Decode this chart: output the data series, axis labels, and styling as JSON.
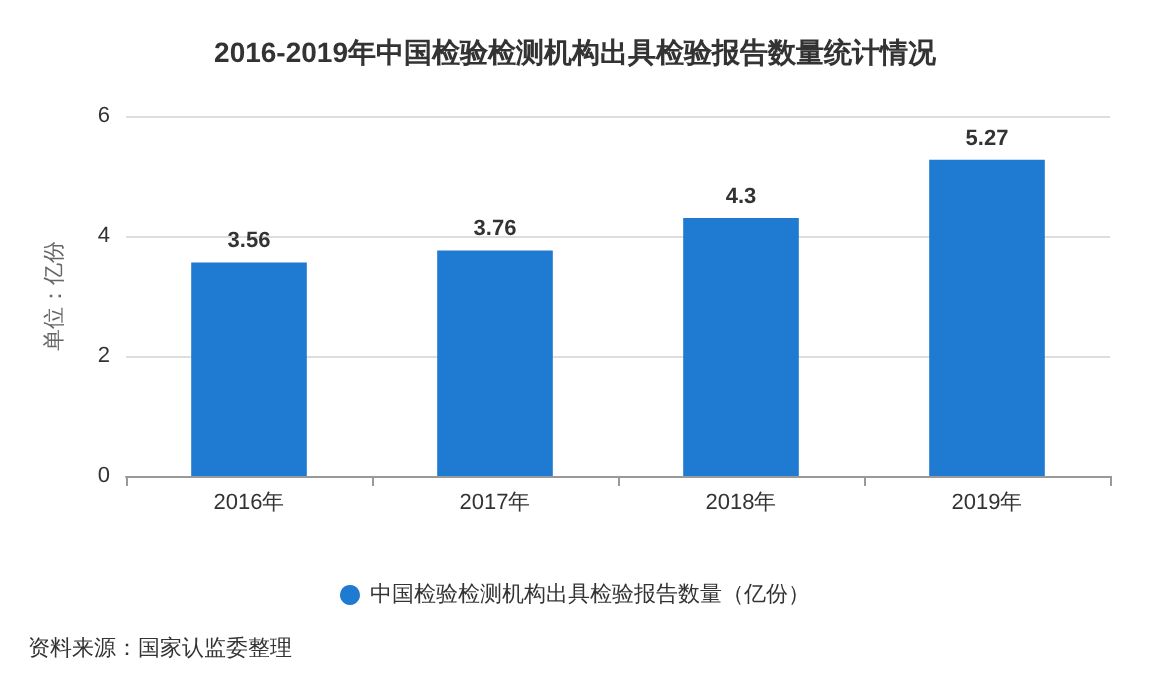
{
  "chart_data": {
    "type": "bar",
    "title": "2016-2019年中国检验检测机构出具检验报告数量统计情况",
    "ylabel": "单位：亿份",
    "categories": [
      "2016年",
      "2017年",
      "2018年",
      "2019年"
    ],
    "series": [
      {
        "name": "中国检验检测机构出具检验报告数量（亿份）",
        "color": "#1f7ad2",
        "values": [
          3.56,
          3.76,
          4.3,
          5.27
        ]
      }
    ],
    "ylim": [
      0,
      6
    ],
    "yticks": [
      0,
      2,
      4,
      6
    ],
    "grid": "y",
    "legend": "bottom",
    "data_labels": true,
    "annotations": [
      "资料来源：国家认监委整理"
    ]
  }
}
